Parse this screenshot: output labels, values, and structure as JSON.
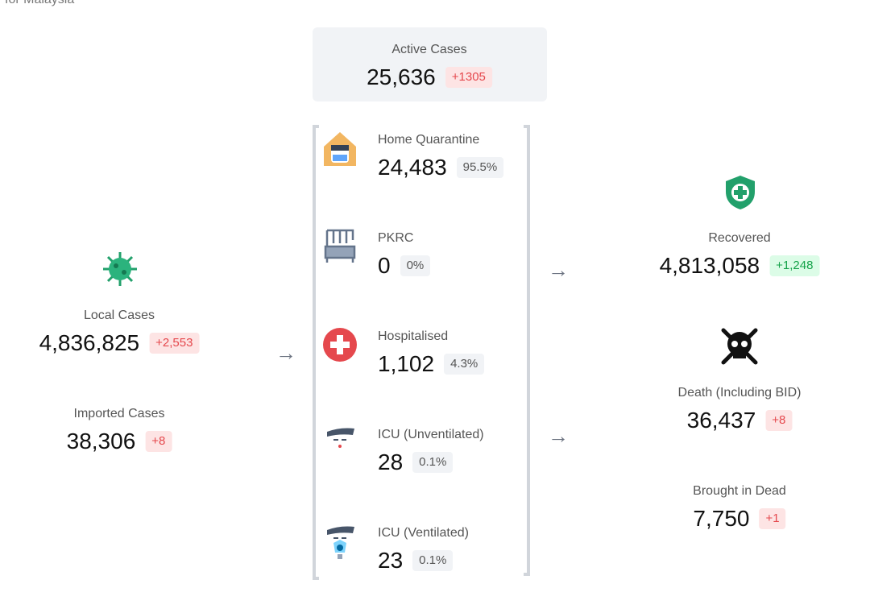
{
  "header": {
    "subtitle": "for Malaysia"
  },
  "active": {
    "label": "Active Cases",
    "value": "25,636",
    "change": "+1305"
  },
  "local": {
    "label": "Local Cases",
    "value": "4,836,825",
    "change": "+2,553"
  },
  "imported": {
    "label": "Imported Cases",
    "value": "38,306",
    "change": "+8"
  },
  "statuses": [
    {
      "label": "Home Quarantine",
      "value": "24,483",
      "share": "95.5%"
    },
    {
      "label": "PKRC",
      "value": "0",
      "share": "0%"
    },
    {
      "label": "Hospitalised",
      "value": "1,102",
      "share": "4.3%"
    },
    {
      "label": "ICU (Unventilated)",
      "value": "28",
      "share": "0.1%"
    },
    {
      "label": "ICU (Ventilated)",
      "value": "23",
      "share": "0.1%"
    }
  ],
  "recovered": {
    "label": "Recovered",
    "value": "4,813,058",
    "change": "+1,248"
  },
  "death": {
    "label": "Death (Including BID)",
    "value": "36,437",
    "change": "+8"
  },
  "bid": {
    "label": "Brought in Dead",
    "value": "7,750",
    "change": "+1"
  }
}
